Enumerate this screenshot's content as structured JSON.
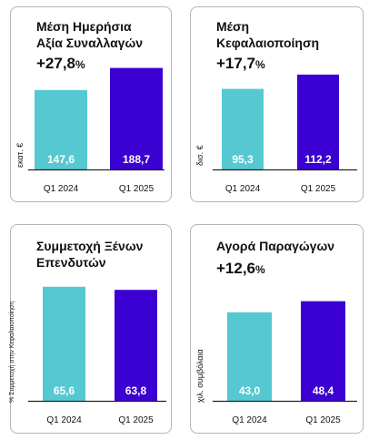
{
  "colors": {
    "bar_2024": "#55c8d2",
    "bar_2025": "#3b00d2",
    "axis": "#222222",
    "value_text": "#ffffff"
  },
  "panels": [
    {
      "title_line1": "Μέση Ημερήσια",
      "title_line2": "Αξία Συναλλαγών",
      "change": "+27,8",
      "change_unit": "%",
      "ylabel": "εκατ. €"
    },
    {
      "title_line1": "Μέση",
      "title_line2": "Κεφαλαιοποίηση",
      "change": "+17,7",
      "change_unit": "%",
      "ylabel": "δισ. €"
    },
    {
      "title_line1": "Συμμετοχή Ξένων",
      "title_line2": "Επενδυτών",
      "change": "",
      "change_unit": "",
      "ylabel": "% Συμμετοχή στην Κεφαλαιοποίηση"
    },
    {
      "title_line1": "Αγορά Παραγώγων",
      "title_line2": "",
      "change": "+12,6",
      "change_unit": "%",
      "ylabel": "χιλ. συμβόλαια"
    }
  ],
  "chart_data": [
    {
      "type": "bar",
      "categories": [
        "Q1 2024",
        "Q1 2025"
      ],
      "values": [
        147.6,
        188.7
      ],
      "labels": [
        "147,6",
        "188,7"
      ],
      "title": "Μέση Ημερήσια Αξία Συναλλαγών",
      "ylabel": "εκατ. €",
      "ylim": [
        0,
        210
      ]
    },
    {
      "type": "bar",
      "categories": [
        "Q1 2024",
        "Q1 2025"
      ],
      "values": [
        95.3,
        112.2
      ],
      "labels": [
        "95,3",
        "112,2"
      ],
      "title": "Μέση Κεφαλαιοποίηση",
      "ylabel": "δισ. €",
      "ylim": [
        0,
        125
      ]
    },
    {
      "type": "bar",
      "categories": [
        "Q1 2024",
        "Q1 2025"
      ],
      "values": [
        65.6,
        63.8
      ],
      "labels": [
        "65,6",
        "63,8"
      ],
      "title": "Συμμετοχή Ξένων Επενδυτών",
      "ylabel": "% Συμμετοχή στην Κεφαλαιοποίηση",
      "ylim": [
        0,
        66
      ]
    },
    {
      "type": "bar",
      "categories": [
        "Q1 2024",
        "Q1 2025"
      ],
      "values": [
        43.0,
        48.4
      ],
      "labels": [
        "43,0",
        "48,4"
      ],
      "title": "Αγορά Παραγώγων",
      "ylabel": "χιλ. συμβόλαια",
      "ylim": [
        0,
        54
      ]
    }
  ]
}
